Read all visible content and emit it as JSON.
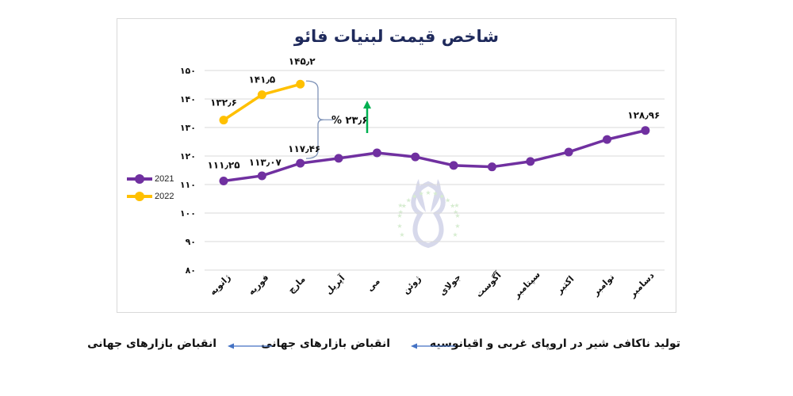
{
  "chart_data": {
    "type": "line",
    "title": "شاخص قیمت لبنیات فائو",
    "xlabel": "",
    "ylabel": "",
    "ylim": [
      80,
      150
    ],
    "yticks": [
      80,
      90,
      100,
      110,
      120,
      130,
      140,
      150
    ],
    "ytick_labels": [
      "۸۰",
      "۹۰",
      "۱۰۰",
      "۱۱۰",
      "۱۲۰",
      "۱۳۰",
      "۱۴۰",
      "۱۵۰"
    ],
    "grid": true,
    "legend_position": "left",
    "categories": [
      "ژانویه",
      "فوریه",
      "مارچ",
      "آپریل",
      "می",
      "ژوئن",
      "جولای",
      "آگوست",
      "سپتامبر",
      "اکتبر",
      "نوامبر",
      "دسامبر"
    ],
    "series": [
      {
        "name": "2021",
        "color": "#7030a0",
        "values": [
          111.25,
          113.07,
          117.46,
          119.2,
          121.1,
          119.7,
          116.7,
          116.2,
          118.1,
          121.4,
          125.8,
          128.96
        ],
        "data_labels": {
          "0": "۱۱۱٫۲۵",
          "1": "۱۱۳٫۰۷",
          "2": "۱۱۷٫۴۶",
          "11": "۱۲۸٫۹۶"
        }
      },
      {
        "name": "2022",
        "color": "#ffc000",
        "values": [
          132.6,
          141.5,
          145.2
        ],
        "data_labels": {
          "0": "۱۳۲٫۶",
          "1": "۱۴۱٫۵",
          "2": "۱۴۵٫۲"
        }
      }
    ],
    "annotations": [
      {
        "type": "brace",
        "between": "March 2021 – March 2022",
        "text": "% ۲۳٫۶"
      },
      {
        "type": "arrow",
        "direction": "up",
        "color": "#00b050"
      }
    ]
  },
  "title": "شاخص قیمت لبنیات فائو",
  "legend": {
    "items": [
      {
        "label": "2021",
        "color": "#7030a0"
      },
      {
        "label": "2022",
        "color": "#ffc000"
      }
    ]
  },
  "annotation": {
    "change_text": "% ۲۳٫۶"
  },
  "flow": {
    "steps": [
      "تولید ناکافی شیر در اروپای غربی و اقیانوسیه",
      "انقباض بازارهای جهانی",
      "انقباض بازارهای جهانی"
    ],
    "arrow_color": "#4472c4"
  }
}
